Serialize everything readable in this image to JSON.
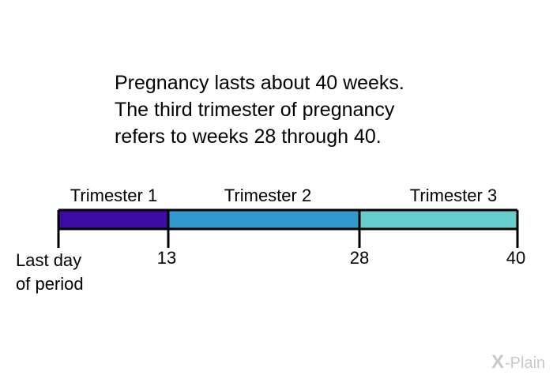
{
  "intro": {
    "line1": "Pregnancy lasts about 40 weeks.",
    "line2": "The third trimester of pregnancy",
    "line3": "refers to weeks 28 through 40."
  },
  "timeline": {
    "start_label_line1": "Last day",
    "start_label_line2": "of period",
    "ticks": [
      "13",
      "28",
      "40"
    ],
    "trimesters": [
      {
        "label": "Trimester 1",
        "from": 0,
        "to": 13,
        "color": "#3a0ca3"
      },
      {
        "label": "Trimester 2",
        "from": 13,
        "to": 28,
        "color": "#3399cc"
      },
      {
        "label": "Trimester 3",
        "from": 28,
        "to": 40,
        "color": "#66cccc"
      }
    ],
    "line_color": "#000000"
  },
  "logo": {
    "mark": "X",
    "text": "-Plain"
  }
}
